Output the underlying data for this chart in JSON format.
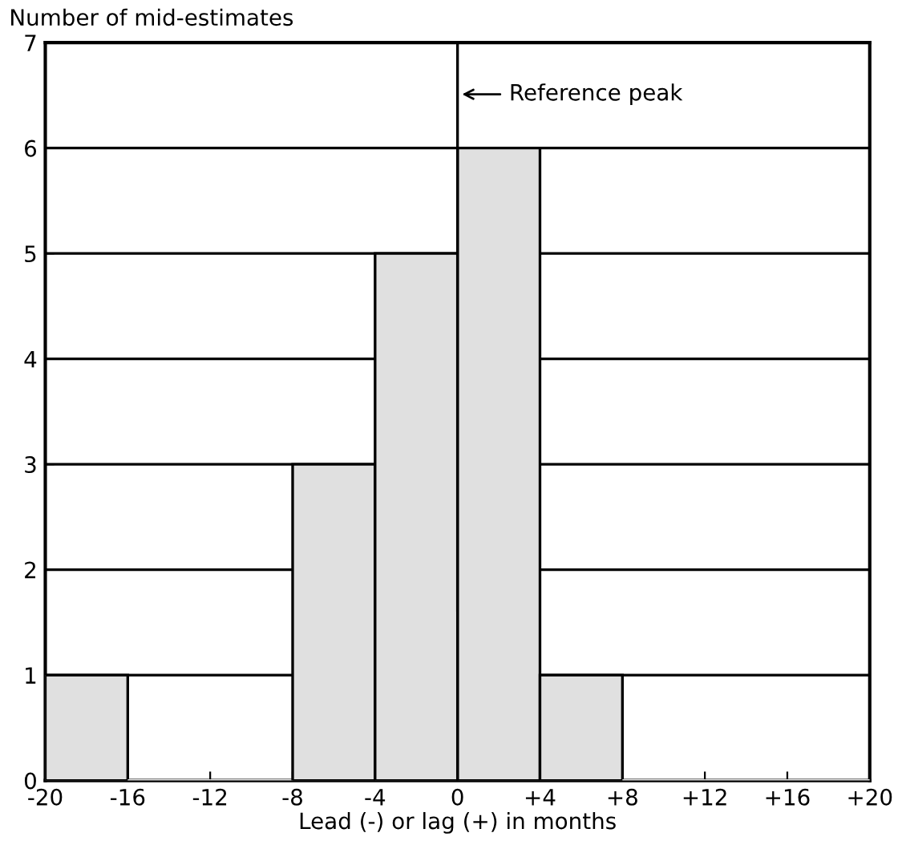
{
  "chart_data": {
    "type": "histogram",
    "xlabel": "Lead (-) or lag (+) in months",
    "ylabel": "Number of mid-estimates",
    "bins": [
      -20,
      -16,
      -12,
      -8,
      -4,
      0,
      4,
      8,
      12,
      16,
      20
    ],
    "values": [
      1,
      0,
      0,
      3,
      5,
      6,
      1,
      0,
      0,
      0
    ],
    "color": "#e0e0e0",
    "xlim": [
      -20,
      20
    ],
    "xticks": [
      {
        "value": -20,
        "label": "-20"
      },
      {
        "value": -16,
        "label": "-16"
      },
      {
        "value": -12,
        "label": "-12"
      },
      {
        "value": -8,
        "label": "-8"
      },
      {
        "value": -4,
        "label": "-4"
      },
      0,
      {
        "value": 4,
        "label": "+4"
      },
      {
        "value": 8,
        "label": "+8"
      },
      {
        "value": 12,
        "label": "+12"
      },
      {
        "value": 16,
        "label": "+16"
      },
      {
        "value": 20,
        "label": "+20"
      }
    ],
    "ylim": [
      0,
      7
    ],
    "yticks": [
      0,
      1,
      2,
      3,
      4,
      5,
      6,
      7
    ],
    "grid": "y",
    "ref_lines": [
      {
        "axis": "x",
        "value": 0,
        "label": "Reference peak",
        "color": "#000000"
      }
    ]
  }
}
